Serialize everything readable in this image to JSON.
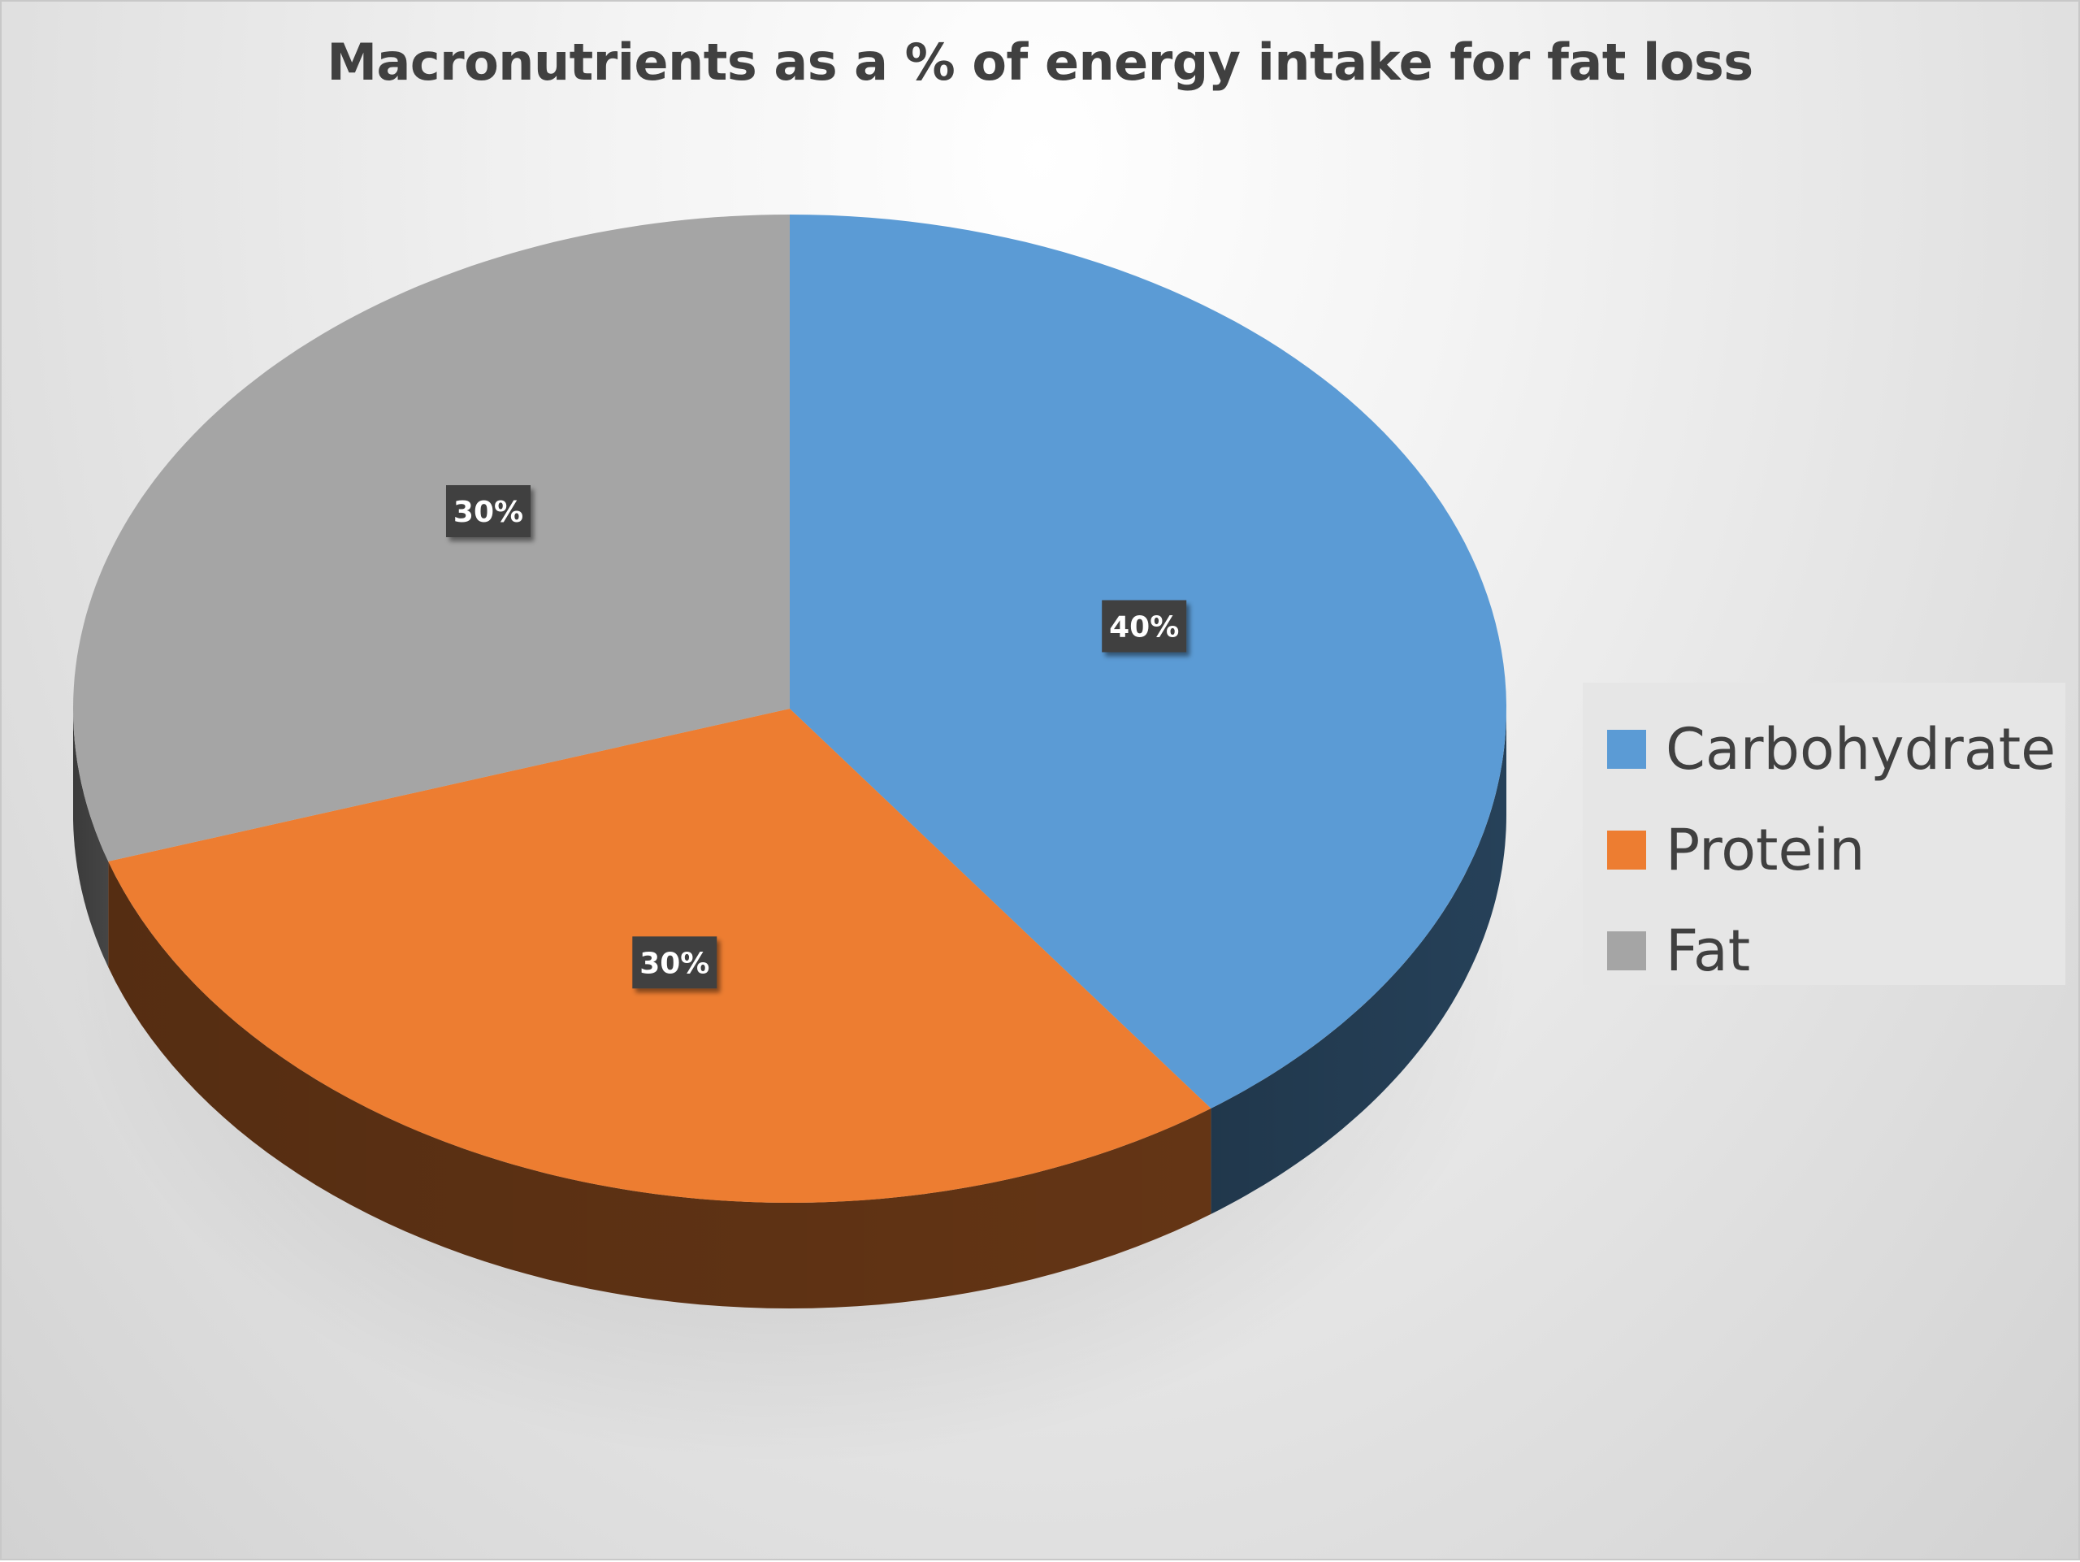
{
  "chart_data": {
    "type": "pie",
    "title": "Macronutrients as a % of energy intake for fat loss",
    "categories": [
      "Carbohydrate",
      "Protein",
      "Fat"
    ],
    "values": [
      40,
      30,
      30
    ],
    "data_labels": [
      "40%",
      "30%",
      "30%"
    ],
    "colors": [
      "#5b9bd5",
      "#ed7d31",
      "#a5a5a5"
    ],
    "legend_position": "right",
    "style": "3d-perspective"
  }
}
